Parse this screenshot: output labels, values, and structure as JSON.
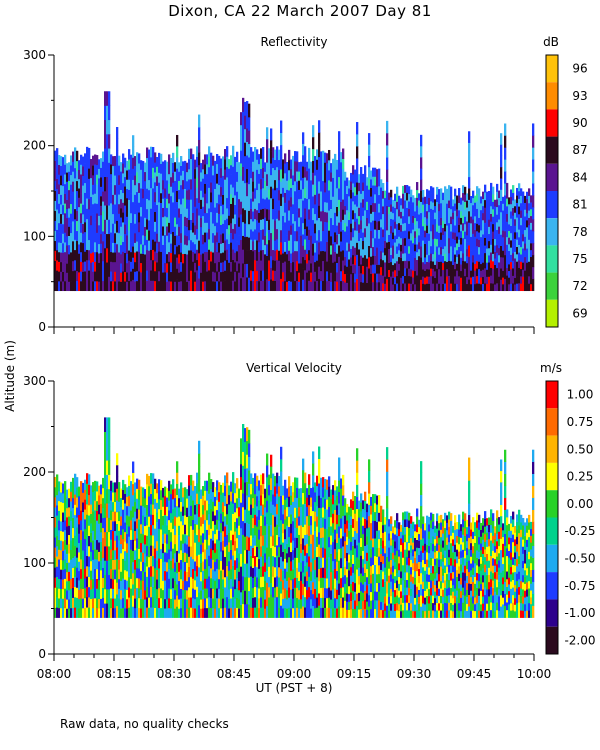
{
  "title": "Dixon, CA 22 March 2007  Day  81",
  "footnote": "Raw data, no quality checks",
  "shared_ylabel": "Altitude (m)",
  "chart_data": [
    {
      "type": "heatmap",
      "title": "Reflectivity",
      "colorbar_label": "dB",
      "colorbar_ticks": [
        "96",
        "93",
        "90",
        "87",
        "84",
        "81",
        "78",
        "75",
        "72",
        "69"
      ],
      "colorbar_colors": [
        "#ffc20a",
        "#ff8c00",
        "#ff0000",
        "#2b0a1e",
        "#5a1490",
        "#1e3cff",
        "#3ab4f0",
        "#33e0a0",
        "#3cd23c",
        "#b4f000"
      ],
      "ylabel": "Altitude (m)",
      "ylim": [
        0,
        300
      ],
      "yticks": [
        "300",
        "200",
        "100",
        "0"
      ],
      "x_time_range": [
        "08:00",
        "10:00"
      ],
      "data_bottom_altitude": 40,
      "max_echo_top_altitude": 260,
      "typical_echo_top_altitude": 200
    },
    {
      "type": "heatmap",
      "title": "Vertical Velocity",
      "colorbar_label": "m/s",
      "colorbar_ticks": [
        "1.00",
        "0.75",
        "0.50",
        "0.25",
        "0.00",
        "-0.25",
        "-0.50",
        "-0.75",
        "-1.00",
        "-2.00"
      ],
      "colorbar_colors": [
        "#ff0000",
        "#ff6a00",
        "#ffb400",
        "#ffff00",
        "#28d228",
        "#00d28c",
        "#1eaaf0",
        "#1e3cff",
        "#2d008c",
        "#2b0a1e"
      ],
      "ylabel": "Altitude (m)",
      "ylim": [
        0,
        300
      ],
      "yticks": [
        "300",
        "200",
        "100",
        "0"
      ],
      "x_time_range": [
        "08:00",
        "10:00"
      ],
      "xticks": [
        "08:00",
        "08:15",
        "08:30",
        "08:45",
        "09:00",
        "09:15",
        "09:30",
        "09:45",
        "10:00"
      ],
      "xlabel": "UT  (PST + 8)",
      "data_bottom_altitude": 40,
      "max_echo_top_altitude": 260,
      "typical_echo_top_altitude": 200
    }
  ]
}
